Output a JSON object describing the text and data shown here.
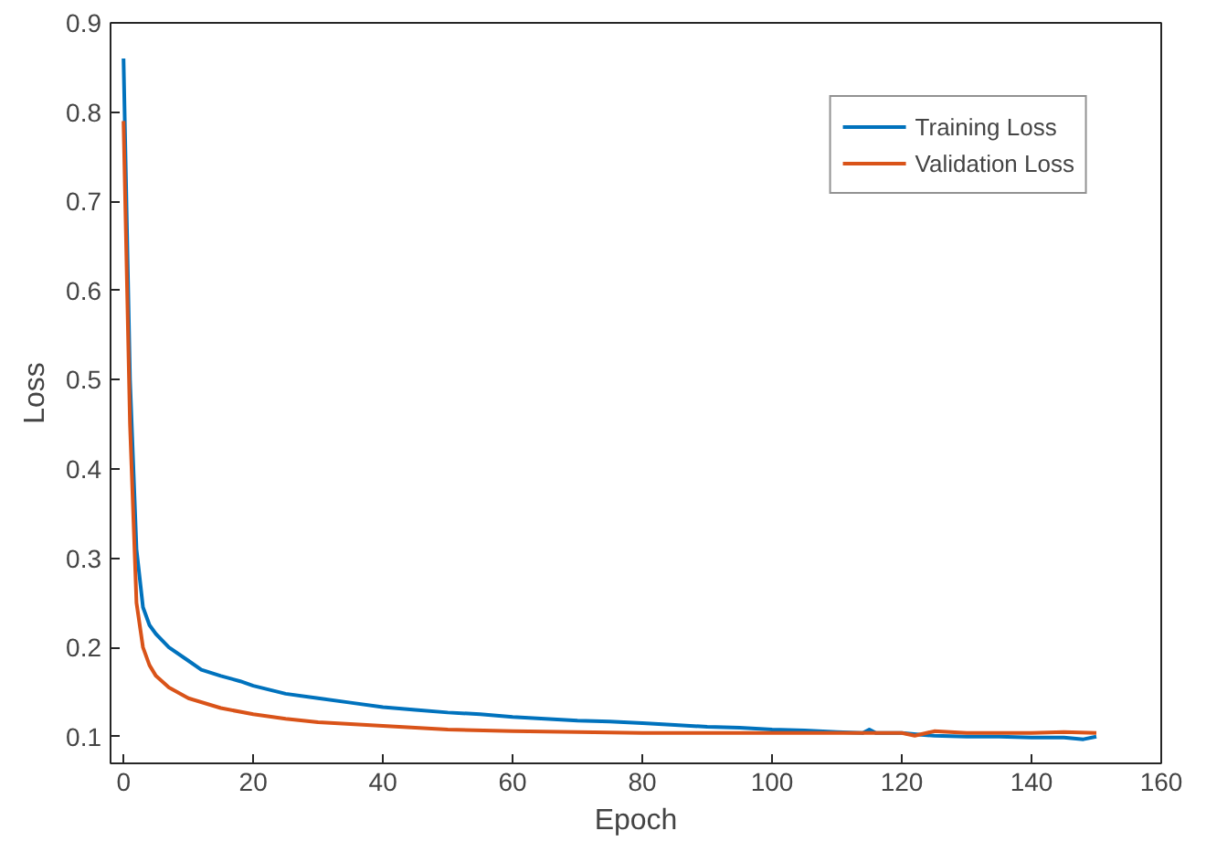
{
  "chart_data": {
    "type": "line",
    "xlabel": "Epoch",
    "ylabel": "Loss",
    "xlim": [
      -2,
      160
    ],
    "ylim": [
      0.07,
      0.9
    ],
    "xticks": [
      0,
      20,
      40,
      60,
      80,
      100,
      120,
      140,
      160
    ],
    "yticks": [
      0.1,
      0.2,
      0.3,
      0.4,
      0.5,
      0.6,
      0.7,
      0.8,
      0.9
    ],
    "grid": false,
    "legend": "top right",
    "line_style": "solid",
    "series": [
      {
        "name": "Training Loss",
        "color": "#0072bd",
        "x": [
          0,
          1,
          2,
          3,
          4,
          5,
          7,
          10,
          12,
          15,
          18,
          20,
          25,
          30,
          35,
          40,
          45,
          50,
          55,
          60,
          65,
          70,
          75,
          80,
          85,
          90,
          95,
          100,
          105,
          110,
          114,
          115,
          116,
          120,
          123,
          125,
          130,
          135,
          140,
          145,
          148,
          150
        ],
        "values": [
          0.86,
          0.5,
          0.31,
          0.245,
          0.225,
          0.215,
          0.2,
          0.185,
          0.175,
          0.168,
          0.162,
          0.157,
          0.148,
          0.143,
          0.138,
          0.133,
          0.13,
          0.127,
          0.125,
          0.122,
          0.12,
          0.118,
          0.117,
          0.115,
          0.113,
          0.111,
          0.11,
          0.108,
          0.107,
          0.105,
          0.104,
          0.108,
          0.104,
          0.104,
          0.102,
          0.101,
          0.1,
          0.1,
          0.099,
          0.099,
          0.097,
          0.1
        ]
      },
      {
        "name": "Validation Loss",
        "color": "#d95319",
        "x": [
          0,
          1,
          2,
          3,
          4,
          5,
          7,
          10,
          15,
          20,
          25,
          30,
          40,
          50,
          60,
          70,
          80,
          90,
          100,
          110,
          120,
          122,
          125,
          130,
          140,
          145,
          150
        ],
        "values": [
          0.79,
          0.45,
          0.25,
          0.2,
          0.18,
          0.168,
          0.155,
          0.143,
          0.132,
          0.125,
          0.12,
          0.116,
          0.112,
          0.108,
          0.106,
          0.105,
          0.104,
          0.104,
          0.104,
          0.104,
          0.104,
          0.101,
          0.106,
          0.104,
          0.104,
          0.105,
          0.104
        ]
      }
    ]
  }
}
